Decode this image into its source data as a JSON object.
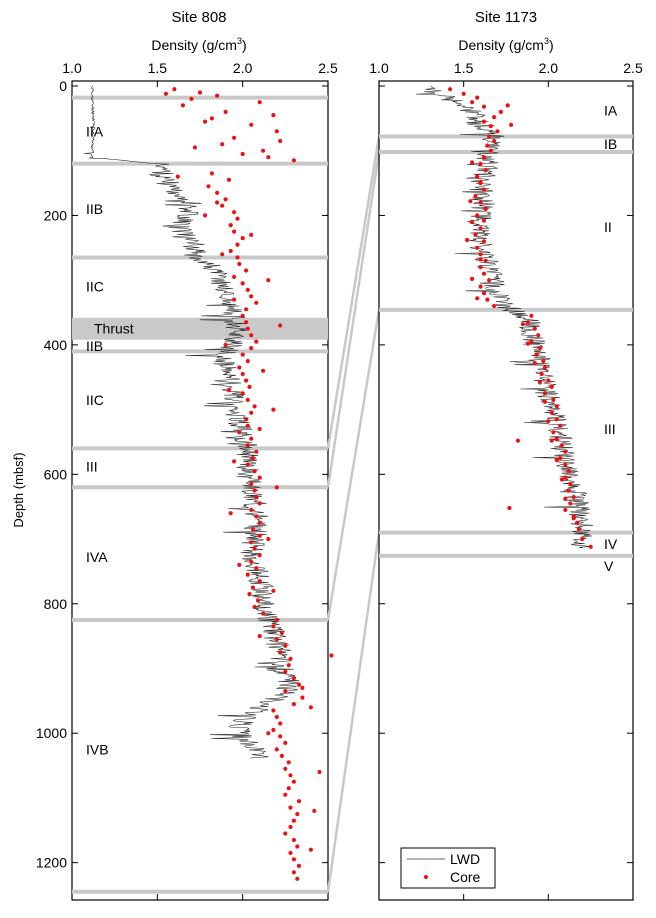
{
  "chart_data": [
    {
      "type": "scatter",
      "title": "Site 808",
      "xlabel": "Density (g/cm",
      "xlabel_sup": "3",
      "xlabel_end": ")",
      "ylabel": "Depth (mbsf)",
      "xlim": [
        1.0,
        2.5
      ],
      "ylim": [
        1250,
        0
      ],
      "xticks": [
        "1.0",
        "1.5",
        "2.0",
        "2.5"
      ],
      "yticks": [
        "0",
        "200",
        "400",
        "600",
        "800",
        "1000",
        "1200"
      ],
      "xtick_values": [
        1.0,
        1.5,
        2.0,
        2.5
      ],
      "ytick_values": [
        0,
        200,
        400,
        600,
        800,
        1000,
        1200
      ],
      "boundaries": [
        18,
        120,
        265,
        410,
        560,
        620,
        825,
        1245
      ],
      "thrust_zone": {
        "label": "Thrust",
        "top": 358,
        "bottom": 392
      },
      "units": [
        {
          "label": "IIA",
          "depth": 70
        },
        {
          "label": "IIB",
          "depth": 190
        },
        {
          "label": "IIC",
          "depth": 310
        },
        {
          "label": "IIB",
          "depth": 402
        },
        {
          "label": "IIC",
          "depth": 485
        },
        {
          "label": "III",
          "depth": 588
        },
        {
          "label": "IVA",
          "depth": 728
        },
        {
          "label": "IVB",
          "depth": 1025
        }
      ],
      "series": [
        {
          "name": "LWD",
          "depth": [
            0,
            18,
            30,
            60,
            90,
            110,
            122,
            140,
            160,
            180,
            200,
            220,
            240,
            260,
            280,
            300,
            320,
            340,
            360,
            380,
            400,
            420,
            440,
            460,
            480,
            500,
            520,
            540,
            560,
            580,
            600,
            620,
            640,
            660,
            680,
            700,
            720,
            740,
            760,
            780,
            800,
            820,
            840,
            860,
            880,
            900,
            920,
            940,
            960,
            980,
            1000,
            1020,
            1040
          ],
          "values": [
            1.12,
            1.12,
            1.12,
            1.13,
            1.12,
            1.12,
            1.55,
            1.52,
            1.6,
            1.7,
            1.68,
            1.63,
            1.72,
            1.72,
            1.82,
            1.87,
            1.9,
            1.92,
            1.95,
            1.98,
            1.93,
            1.88,
            1.9,
            1.94,
            1.95,
            1.96,
            1.98,
            2.0,
            2.02,
            2.03,
            2.03,
            2.05,
            2.07,
            2.08,
            2.08,
            2.07,
            2.05,
            2.08,
            2.1,
            2.12,
            2.12,
            2.15,
            2.18,
            2.2,
            2.23,
            2.25,
            2.27,
            2.25,
            2.1,
            2.0,
            1.98,
            2.05,
            2.1
          ]
        },
        {
          "name": "Core",
          "depth": [
            5,
            10,
            15,
            20,
            25,
            12,
            30,
            40,
            50,
            60,
            70,
            80,
            90,
            100,
            110,
            45,
            55,
            85,
            95,
            105,
            115,
            135,
            145,
            155,
            165,
            175,
            185,
            195,
            205,
            215,
            225,
            235,
            245,
            255,
            265,
            275,
            285,
            295,
            305,
            315,
            325,
            335,
            345,
            355,
            365,
            375,
            385,
            395,
            405,
            415,
            425,
            435,
            445,
            455,
            465,
            475,
            485,
            495,
            505,
            515,
            525,
            535,
            545,
            555,
            565,
            575,
            585,
            595,
            605,
            615,
            625,
            635,
            645,
            655,
            665,
            675,
            685,
            695,
            705,
            715,
            725,
            735,
            745,
            755,
            765,
            775,
            785,
            795,
            805,
            815,
            825,
            835,
            845,
            855,
            865,
            875,
            885,
            895,
            905,
            915,
            925,
            935,
            945,
            955,
            965,
            975,
            985,
            995,
            1005,
            1015,
            1025,
            1035,
            1045,
            1055,
            1065,
            1075,
            1085,
            1095,
            1105,
            1115,
            1125,
            1135,
            1145,
            1155,
            1165,
            1175,
            1185,
            1195,
            1205,
            1215,
            1225,
            140,
            180,
            200,
            230,
            260,
            300,
            330,
            370,
            400,
            440,
            470,
            500,
            530,
            580,
            620,
            660,
            700,
            740,
            780,
            850,
            880,
            930,
            960,
            1000,
            1060,
            1120,
            1180
          ],
          "values": [
            1.6,
            1.75,
            1.85,
            1.7,
            2.1,
            1.55,
            1.65,
            1.9,
            1.82,
            2.05,
            2.2,
            1.95,
            1.88,
            2.12,
            2.15,
            2.18,
            1.78,
            2.22,
            1.72,
            2.0,
            2.3,
            1.82,
            1.92,
            1.8,
            1.85,
            1.9,
            1.88,
            1.95,
            1.97,
            1.93,
            1.95,
            2.0,
            1.97,
            1.93,
            1.97,
            1.98,
            2.02,
            1.95,
            2.0,
            2.03,
            2.05,
            2.08,
            2.02,
            2.0,
            2.02,
            2.03,
            2.05,
            2.08,
            2.05,
            2.0,
            2.03,
            1.98,
            2.0,
            2.02,
            2.04,
            2.0,
            2.03,
            2.07,
            2.05,
            2.02,
            2.03,
            1.98,
            2.05,
            2.03,
            2.08,
            2.06,
            2.03,
            2.07,
            2.1,
            2.05,
            2.07,
            2.08,
            2.1,
            2.05,
            2.08,
            2.1,
            2.06,
            2.1,
            2.05,
            2.07,
            2.1,
            2.05,
            2.08,
            2.03,
            2.1,
            2.06,
            2.04,
            2.09,
            2.07,
            2.12,
            2.2,
            2.18,
            2.23,
            2.2,
            2.25,
            2.22,
            2.28,
            2.27,
            2.25,
            2.3,
            2.33,
            2.25,
            2.35,
            2.3,
            2.18,
            2.2,
            2.22,
            2.18,
            2.22,
            2.25,
            2.2,
            2.23,
            2.27,
            2.25,
            2.28,
            2.3,
            2.27,
            2.25,
            2.33,
            2.28,
            2.32,
            2.3,
            2.28,
            2.25,
            2.3,
            2.32,
            2.28,
            2.3,
            2.33,
            2.3,
            2.32,
            1.62,
            1.85,
            1.78,
            2.05,
            1.88,
            2.15,
            1.95,
            2.22,
            1.9,
            2.12,
            1.92,
            2.18,
            2.1,
            1.95,
            2.2,
            1.93,
            2.15,
            1.98,
            2.18,
            2.1,
            2.52,
            2.35,
            2.4,
            2.15,
            2.45,
            2.42,
            2.4
          ]
        }
      ]
    },
    {
      "type": "scatter",
      "title": "Site 1173",
      "xlabel": "Density (g/cm",
      "xlabel_sup": "3",
      "xlabel_end": ")",
      "xlim": [
        1.0,
        2.5
      ],
      "ylim": [
        1250,
        0
      ],
      "xticks": [
        "1.0",
        "1.5",
        "2.0",
        "2.5"
      ],
      "xtick_values": [
        1.0,
        1.5,
        2.0,
        2.5
      ],
      "ytick_values": [
        0,
        200,
        400,
        600,
        800,
        1000,
        1200
      ],
      "boundaries": [
        78,
        102,
        346,
        690,
        726
      ],
      "units": [
        {
          "label": "IA",
          "depth": 38
        },
        {
          "label": "IB",
          "depth": 90
        },
        {
          "label": "II",
          "depth": 218
        },
        {
          "label": "III",
          "depth": 530
        },
        {
          "label": "IV",
          "depth": 708
        },
        {
          "label": "V",
          "depth": 742
        }
      ],
      "legend": {
        "placement": "bottom-left",
        "entries": [
          "LWD",
          "Core"
        ]
      },
      "series": [
        {
          "name": "LWD",
          "depth": [
            0,
            10,
            20,
            30,
            40,
            50,
            60,
            70,
            80,
            90,
            100,
            120,
            140,
            160,
            180,
            200,
            220,
            240,
            260,
            280,
            300,
            320,
            340,
            360,
            380,
            400,
            420,
            440,
            460,
            480,
            500,
            520,
            540,
            560,
            580,
            600,
            620,
            640,
            660,
            680,
            700,
            715
          ],
          "values": [
            1.25,
            1.32,
            1.42,
            1.48,
            1.55,
            1.58,
            1.62,
            1.65,
            1.68,
            1.66,
            1.65,
            1.64,
            1.62,
            1.6,
            1.62,
            1.6,
            1.58,
            1.6,
            1.62,
            1.65,
            1.67,
            1.7,
            1.75,
            1.88,
            1.9,
            1.92,
            1.94,
            1.97,
            1.98,
            2.0,
            2.03,
            2.05,
            2.07,
            2.08,
            2.1,
            2.12,
            2.15,
            2.17,
            2.18,
            2.2,
            2.2,
            2.2
          ]
        },
        {
          "name": "Core",
          "depth": [
            5,
            12,
            18,
            25,
            32,
            40,
            48,
            55,
            62,
            70,
            78,
            85,
            92,
            100,
            110,
            120,
            130,
            140,
            150,
            160,
            170,
            180,
            190,
            200,
            210,
            220,
            230,
            240,
            250,
            260,
            270,
            280,
            290,
            300,
            310,
            320,
            330,
            340,
            355,
            365,
            375,
            385,
            395,
            405,
            415,
            425,
            435,
            445,
            455,
            465,
            475,
            485,
            495,
            505,
            515,
            525,
            535,
            545,
            555,
            565,
            575,
            585,
            595,
            605,
            615,
            625,
            635,
            645,
            655,
            665,
            675,
            685,
            700,
            712,
            118,
            148,
            178,
            208,
            238,
            268,
            298,
            328,
            368,
            398,
            428,
            458,
            488,
            518,
            548,
            578,
            608,
            638,
            668,
            30,
            60,
            548,
            652
          ],
          "values": [
            1.42,
            1.5,
            1.58,
            1.55,
            1.62,
            1.72,
            1.68,
            1.62,
            1.66,
            1.7,
            1.65,
            1.68,
            1.64,
            1.66,
            1.62,
            1.6,
            1.63,
            1.58,
            1.6,
            1.62,
            1.57,
            1.6,
            1.63,
            1.58,
            1.55,
            1.6,
            1.57,
            1.62,
            1.58,
            1.6,
            1.63,
            1.6,
            1.62,
            1.65,
            1.6,
            1.62,
            1.64,
            1.68,
            1.9,
            1.88,
            1.92,
            1.94,
            1.9,
            1.95,
            1.93,
            1.97,
            1.98,
            1.96,
            2.0,
            2.02,
            1.98,
            2.03,
            2.05,
            2.02,
            2.05,
            2.07,
            2.03,
            2.05,
            2.08,
            2.1,
            2.07,
            2.1,
            2.12,
            2.1,
            2.13,
            2.12,
            2.15,
            2.13,
            2.1,
            2.15,
            2.17,
            2.18,
            2.2,
            2.25,
            1.55,
            1.6,
            1.54,
            1.62,
            1.52,
            1.6,
            1.55,
            1.58,
            1.85,
            1.88,
            1.92,
            1.95,
            1.98,
            2.0,
            2.02,
            2.05,
            2.08,
            2.1,
            2.15,
            1.76,
            1.78,
            1.82,
            1.77
          ]
        }
      ]
    }
  ]
}
